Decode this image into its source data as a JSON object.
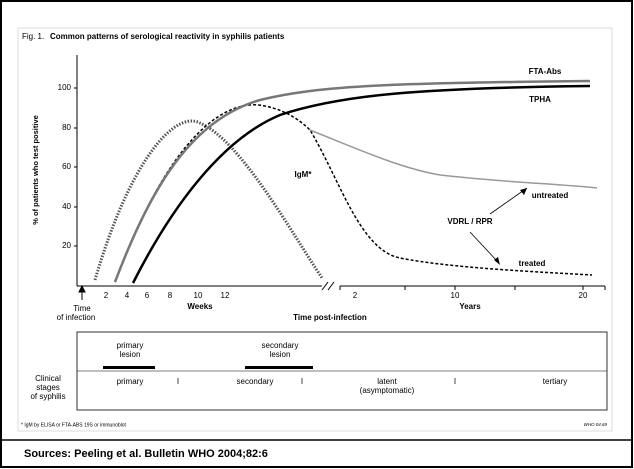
{
  "figure": {
    "title_prefix": "Fig. 1.",
    "title": "Common patterns of serological reactivity in syphilis patients",
    "y_label": "% of patients who test positive",
    "y_ticks": [
      "100",
      "80",
      "60",
      "40",
      "20"
    ],
    "week_ticks": [
      "2",
      "4",
      "6",
      "8",
      "10",
      "12"
    ],
    "year_ticks": [
      "2",
      "10",
      "20"
    ],
    "weeks_label": "Weeks",
    "years_label": "Years",
    "x_label": "Time post-infection",
    "origin_label": [
      "Time",
      "of infection"
    ],
    "curves": {
      "fta": "FTA-Abs",
      "tpha": "TPHA",
      "igm": "IgM*",
      "vdrl": "VDRL / RPR",
      "untreated": "untreated",
      "treated": "treated"
    },
    "stages_title": [
      "Clinical",
      "stages",
      "of syphilis"
    ],
    "lesions": {
      "primary": [
        "primary",
        "lesion"
      ],
      "secondary": [
        "secondary",
        "lesion"
      ]
    },
    "stages": {
      "primary": "primary",
      "secondary": "secondary",
      "latent": [
        "latent",
        "(asymptomatic)"
      ],
      "tertiary": "tertiary",
      "sep": "I"
    },
    "footnote": "* IgM by ELISA or FTA-ABS 19S or immunoblot",
    "code": "WHO 04.69"
  },
  "source": "Sources: Peeling et al. Bulletin WHO 2004;82:6"
}
